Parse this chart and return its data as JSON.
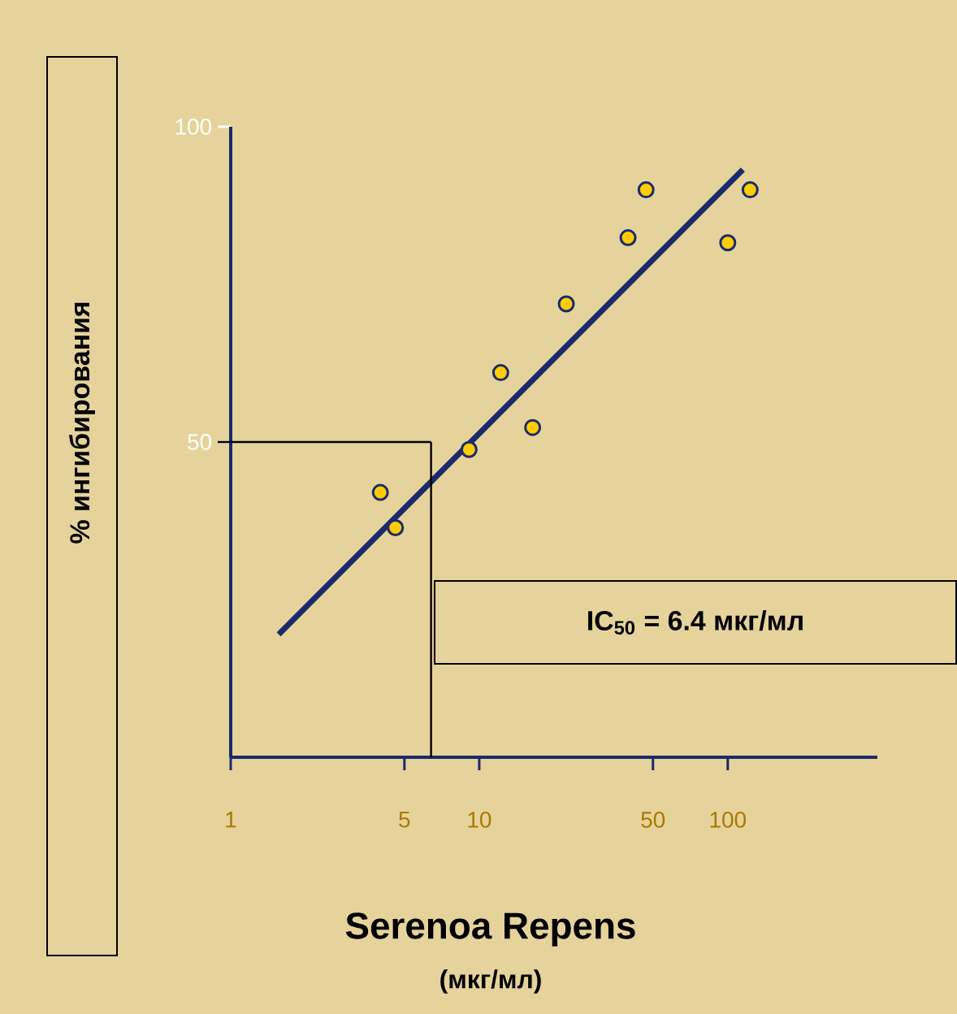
{
  "chart_data": {
    "type": "scatter",
    "xlabel": "Serenoa Repens",
    "ylabel": "% ингибирования",
    "log": "x",
    "xlim": [
      1,
      400
    ],
    "ylim": [
      0,
      100
    ],
    "xticks": [
      1,
      5,
      10,
      50,
      100
    ],
    "yticks": [
      50,
      100
    ],
    "grid": false,
    "series": [
      {
        "marker": "circle",
        "color": "#ffcc00",
        "x": [
          4.0,
          4.6,
          9.1,
          12.2,
          16.4,
          22.4,
          39.7,
          46.9,
          100,
          123
        ],
        "values": [
          42,
          36.4,
          48.8,
          61,
          52.3,
          71.9,
          82.4,
          90,
          81.6,
          90
        ]
      },
      {
        "type": "line",
        "marker": "none",
        "color": "#1a2a6c",
        "x": [
          1.56,
          115
        ],
        "values": [
          19.5,
          93.2
        ]
      }
    ],
    "ref_lines": [
      {
        "axis": "x",
        "value": 6.4,
        "color": "#000000"
      },
      {
        "axis": "y",
        "value": 50,
        "color": "#000000"
      }
    ],
    "annotations": [
      "IC$_{50}$ = 6.4 мкг/мл",
      "(мкг/мл)"
    ]
  }
}
